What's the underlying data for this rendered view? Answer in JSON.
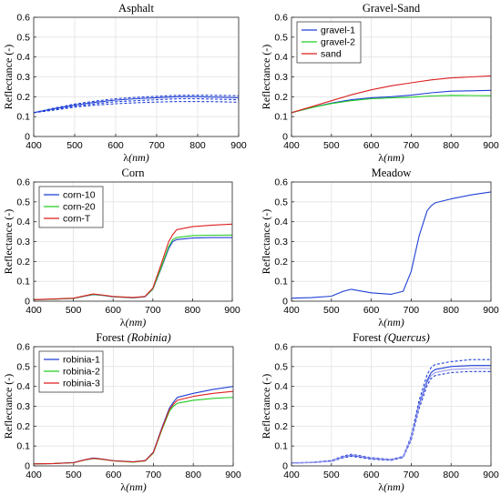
{
  "chart_data": [
    {
      "type": "line",
      "title": "Asphalt",
      "title_suffix": "",
      "xlabel_sym": "λ",
      "xlabel_unit": "(nm)",
      "ylabel": "Reflectance (-)",
      "xlim": [
        400,
        900
      ],
      "ylim": [
        0,
        0.6
      ],
      "xticks": [
        "400",
        "500",
        "600",
        "700",
        "800",
        "900"
      ],
      "yticks": [
        "0",
        "0.1",
        "0.2",
        "0.3",
        "0.4",
        "0.5",
        "0.6"
      ],
      "legend": "none",
      "series": [
        {
          "color": "#1f3fd6",
          "dashed": true,
          "x": [
            400,
            450,
            500,
            550,
            600,
            650,
            700,
            750,
            800,
            850,
            900
          ],
          "y": [
            0.12,
            0.135,
            0.152,
            0.165,
            0.175,
            0.18,
            0.185,
            0.19,
            0.19,
            0.188,
            0.185
          ]
        },
        {
          "color": "#1f3fd6",
          "dashed": false,
          "x": [
            400,
            450,
            500,
            550,
            600,
            650,
            700,
            750,
            800,
            850,
            900
          ],
          "y": [
            0.12,
            0.14,
            0.158,
            0.172,
            0.183,
            0.19,
            0.195,
            0.2,
            0.2,
            0.198,
            0.195
          ]
        },
        {
          "color": "#1f3fd6",
          "dashed": true,
          "x": [
            400,
            450,
            500,
            550,
            600,
            650,
            700,
            750,
            800,
            850,
            900
          ],
          "y": [
            0.12,
            0.143,
            0.163,
            0.178,
            0.19,
            0.197,
            0.202,
            0.207,
            0.208,
            0.207,
            0.205
          ]
        },
        {
          "color": "#1f3fd6",
          "dashed": true,
          "x": [
            400,
            450,
            500,
            550,
            600,
            650,
            700,
            750,
            800,
            850,
            900
          ],
          "y": [
            0.12,
            0.133,
            0.148,
            0.158,
            0.165,
            0.17,
            0.173,
            0.176,
            0.176,
            0.175,
            0.172
          ]
        }
      ]
    },
    {
      "type": "line",
      "title": "Gravel-Sand",
      "title_suffix": "",
      "xlabel_sym": "λ",
      "xlabel_unit": "(nm)",
      "ylabel": "Reflectance (-)",
      "xlim": [
        400,
        900
      ],
      "ylim": [
        0,
        0.6
      ],
      "xticks": [
        "400",
        "500",
        "600",
        "700",
        "800",
        "900"
      ],
      "yticks": [
        "0",
        "0.1",
        "0.2",
        "0.3",
        "0.4",
        "0.5",
        "0.6"
      ],
      "legend": "top-left",
      "series": [
        {
          "name": "gravel-1",
          "color": "#1f3fd6",
          "x": [
            400,
            450,
            500,
            550,
            600,
            650,
            700,
            750,
            800,
            850,
            900
          ],
          "y": [
            0.12,
            0.145,
            0.168,
            0.185,
            0.195,
            0.2,
            0.208,
            0.22,
            0.228,
            0.23,
            0.232
          ]
        },
        {
          "name": "gravel-2",
          "color": "#22cc22",
          "x": [
            400,
            450,
            500,
            550,
            600,
            650,
            700,
            750,
            800,
            850,
            900
          ],
          "y": [
            0.12,
            0.145,
            0.166,
            0.18,
            0.19,
            0.194,
            0.198,
            0.204,
            0.207,
            0.206,
            0.205
          ]
        },
        {
          "name": "sand",
          "color": "#dd1f1f",
          "x": [
            400,
            450,
            500,
            550,
            600,
            650,
            700,
            750,
            800,
            850,
            900
          ],
          "y": [
            0.12,
            0.15,
            0.18,
            0.21,
            0.235,
            0.255,
            0.27,
            0.285,
            0.295,
            0.3,
            0.305
          ]
        }
      ]
    },
    {
      "type": "line",
      "title": "Corn",
      "title_suffix": "",
      "xlabel_sym": "λ",
      "xlabel_unit": "(nm)",
      "ylabel": "Reflectance (-)",
      "xlim": [
        400,
        900
      ],
      "ylim": [
        0,
        0.6
      ],
      "xticks": [
        "400",
        "500",
        "600",
        "700",
        "800",
        "900"
      ],
      "yticks": [
        "0",
        "0.1",
        "0.2",
        "0.3",
        "0.4",
        "0.5",
        "0.6"
      ],
      "legend": "top-left",
      "series": [
        {
          "name": "corn-10",
          "color": "#1f3fd6",
          "x": [
            400,
            450,
            500,
            530,
            550,
            570,
            600,
            650,
            680,
            700,
            720,
            740,
            750,
            760,
            800,
            850,
            900
          ],
          "y": [
            0.008,
            0.01,
            0.014,
            0.026,
            0.033,
            0.03,
            0.022,
            0.017,
            0.022,
            0.06,
            0.16,
            0.265,
            0.3,
            0.31,
            0.318,
            0.32,
            0.32
          ]
        },
        {
          "name": "corn-20",
          "color": "#22cc22",
          "x": [
            400,
            450,
            500,
            530,
            550,
            570,
            600,
            650,
            680,
            700,
            720,
            740,
            750,
            760,
            800,
            850,
            900
          ],
          "y": [
            0.008,
            0.01,
            0.014,
            0.027,
            0.034,
            0.031,
            0.023,
            0.018,
            0.023,
            0.062,
            0.165,
            0.275,
            0.31,
            0.32,
            0.33,
            0.332,
            0.333
          ]
        },
        {
          "name": "corn-T",
          "color": "#dd1f1f",
          "x": [
            400,
            450,
            500,
            530,
            550,
            570,
            600,
            650,
            680,
            700,
            720,
            740,
            750,
            760,
            800,
            850,
            900
          ],
          "y": [
            0.008,
            0.011,
            0.015,
            0.028,
            0.036,
            0.032,
            0.024,
            0.019,
            0.024,
            0.066,
            0.18,
            0.3,
            0.335,
            0.36,
            0.375,
            0.383,
            0.388
          ]
        }
      ]
    },
    {
      "type": "line",
      "title": "Meadow",
      "title_suffix": "",
      "xlabel_sym": "λ",
      "xlabel_unit": "(nm)",
      "ylabel": "Reflectance (-)",
      "xlim": [
        400,
        900
      ],
      "ylim": [
        0,
        0.6
      ],
      "xticks": [
        "400",
        "500",
        "600",
        "700",
        "800",
        "900"
      ],
      "yticks": [
        "0",
        "0.1",
        "0.2",
        "0.3",
        "0.4",
        "0.5",
        "0.6"
      ],
      "legend": "none",
      "series": [
        {
          "color": "#1f3fd6",
          "x": [
            400,
            450,
            500,
            530,
            550,
            570,
            600,
            650,
            680,
            700,
            720,
            740,
            750,
            760,
            800,
            850,
            900
          ],
          "y": [
            0.015,
            0.018,
            0.025,
            0.05,
            0.06,
            0.052,
            0.042,
            0.035,
            0.05,
            0.15,
            0.33,
            0.455,
            0.48,
            0.495,
            0.515,
            0.535,
            0.55
          ]
        }
      ]
    },
    {
      "type": "line",
      "title": "Forest",
      "title_suffix": "(Robinia)",
      "xlabel_sym": "λ",
      "xlabel_unit": "(nm)",
      "ylabel": "Reflectance (-)",
      "xlim": [
        400,
        900
      ],
      "ylim": [
        0,
        0.6
      ],
      "xticks": [
        "400",
        "500",
        "600",
        "700",
        "800",
        "900"
      ],
      "yticks": [
        "0",
        "0.1",
        "0.2",
        "0.3",
        "0.4",
        "0.5",
        "0.6"
      ],
      "legend": "top-left",
      "series": [
        {
          "name": "robinia-1",
          "color": "#1f3fd6",
          "x": [
            400,
            450,
            500,
            530,
            550,
            570,
            600,
            650,
            680,
            700,
            720,
            740,
            750,
            760,
            800,
            850,
            900
          ],
          "y": [
            0.01,
            0.012,
            0.017,
            0.032,
            0.04,
            0.035,
            0.026,
            0.02,
            0.027,
            0.07,
            0.185,
            0.29,
            0.32,
            0.345,
            0.365,
            0.385,
            0.4
          ]
        },
        {
          "name": "robinia-2",
          "color": "#22cc22",
          "x": [
            400,
            450,
            500,
            530,
            550,
            570,
            600,
            650,
            680,
            700,
            720,
            740,
            750,
            760,
            800,
            850,
            900
          ],
          "y": [
            0.01,
            0.012,
            0.016,
            0.03,
            0.037,
            0.033,
            0.025,
            0.019,
            0.025,
            0.065,
            0.175,
            0.275,
            0.3,
            0.315,
            0.33,
            0.34,
            0.345
          ]
        },
        {
          "name": "robinia-3",
          "color": "#dd1f1f",
          "x": [
            400,
            450,
            500,
            530,
            550,
            570,
            600,
            650,
            680,
            700,
            720,
            740,
            750,
            760,
            800,
            850,
            900
          ],
          "y": [
            0.01,
            0.012,
            0.016,
            0.031,
            0.038,
            0.034,
            0.025,
            0.02,
            0.026,
            0.068,
            0.18,
            0.283,
            0.31,
            0.33,
            0.35,
            0.365,
            0.375
          ]
        }
      ]
    },
    {
      "type": "line",
      "title": "Forest",
      "title_suffix": "(Quercus)",
      "xlabel_sym": "λ",
      "xlabel_unit": "(nm)",
      "ylabel": "Reflectance (-)",
      "xlim": [
        400,
        900
      ],
      "ylim": [
        0,
        0.6
      ],
      "xticks": [
        "400",
        "500",
        "600",
        "700",
        "800",
        "900"
      ],
      "yticks": [
        "0",
        "0.1",
        "0.2",
        "0.3",
        "0.4",
        "0.5",
        "0.6"
      ],
      "legend": "none",
      "series": [
        {
          "color": "#1f3fd6",
          "dashed": false,
          "x": [
            400,
            450,
            500,
            530,
            550,
            570,
            600,
            650,
            680,
            700,
            720,
            740,
            750,
            760,
            800,
            850,
            900
          ],
          "y": [
            0.015,
            0.017,
            0.025,
            0.045,
            0.053,
            0.047,
            0.037,
            0.03,
            0.045,
            0.14,
            0.31,
            0.43,
            0.47,
            0.485,
            0.5,
            0.505,
            0.505
          ]
        },
        {
          "color": "#1f3fd6",
          "dashed": true,
          "x": [
            400,
            450,
            500,
            530,
            550,
            570,
            600,
            650,
            680,
            700,
            720,
            740,
            750,
            760,
            800,
            850,
            900
          ],
          "y": [
            0.015,
            0.018,
            0.027,
            0.05,
            0.058,
            0.052,
            0.041,
            0.033,
            0.048,
            0.15,
            0.33,
            0.46,
            0.495,
            0.51,
            0.525,
            0.535,
            0.535
          ]
        },
        {
          "color": "#1f3fd6",
          "dashed": true,
          "x": [
            400,
            450,
            500,
            530,
            550,
            570,
            600,
            650,
            680,
            700,
            720,
            740,
            750,
            760,
            800,
            850,
            900
          ],
          "y": [
            0.014,
            0.016,
            0.023,
            0.041,
            0.048,
            0.043,
            0.034,
            0.028,
            0.042,
            0.13,
            0.29,
            0.405,
            0.44,
            0.455,
            0.47,
            0.475,
            0.475
          ]
        },
        {
          "color": "#9999ee",
          "dashed": false,
          "x": [
            400,
            450,
            500,
            530,
            550,
            570,
            600,
            650,
            680,
            700,
            720,
            740,
            750,
            760,
            800,
            850,
            900
          ],
          "y": [
            0.014,
            0.017,
            0.024,
            0.046,
            0.055,
            0.049,
            0.038,
            0.031,
            0.046,
            0.14,
            0.305,
            0.42,
            0.455,
            0.47,
            0.485,
            0.49,
            0.49
          ]
        }
      ]
    }
  ],
  "colors": {
    "blue": "#1f3fd6",
    "green": "#22cc22",
    "red": "#dd1f1f",
    "grid": "#e3e3e3",
    "axis": "#262626"
  }
}
